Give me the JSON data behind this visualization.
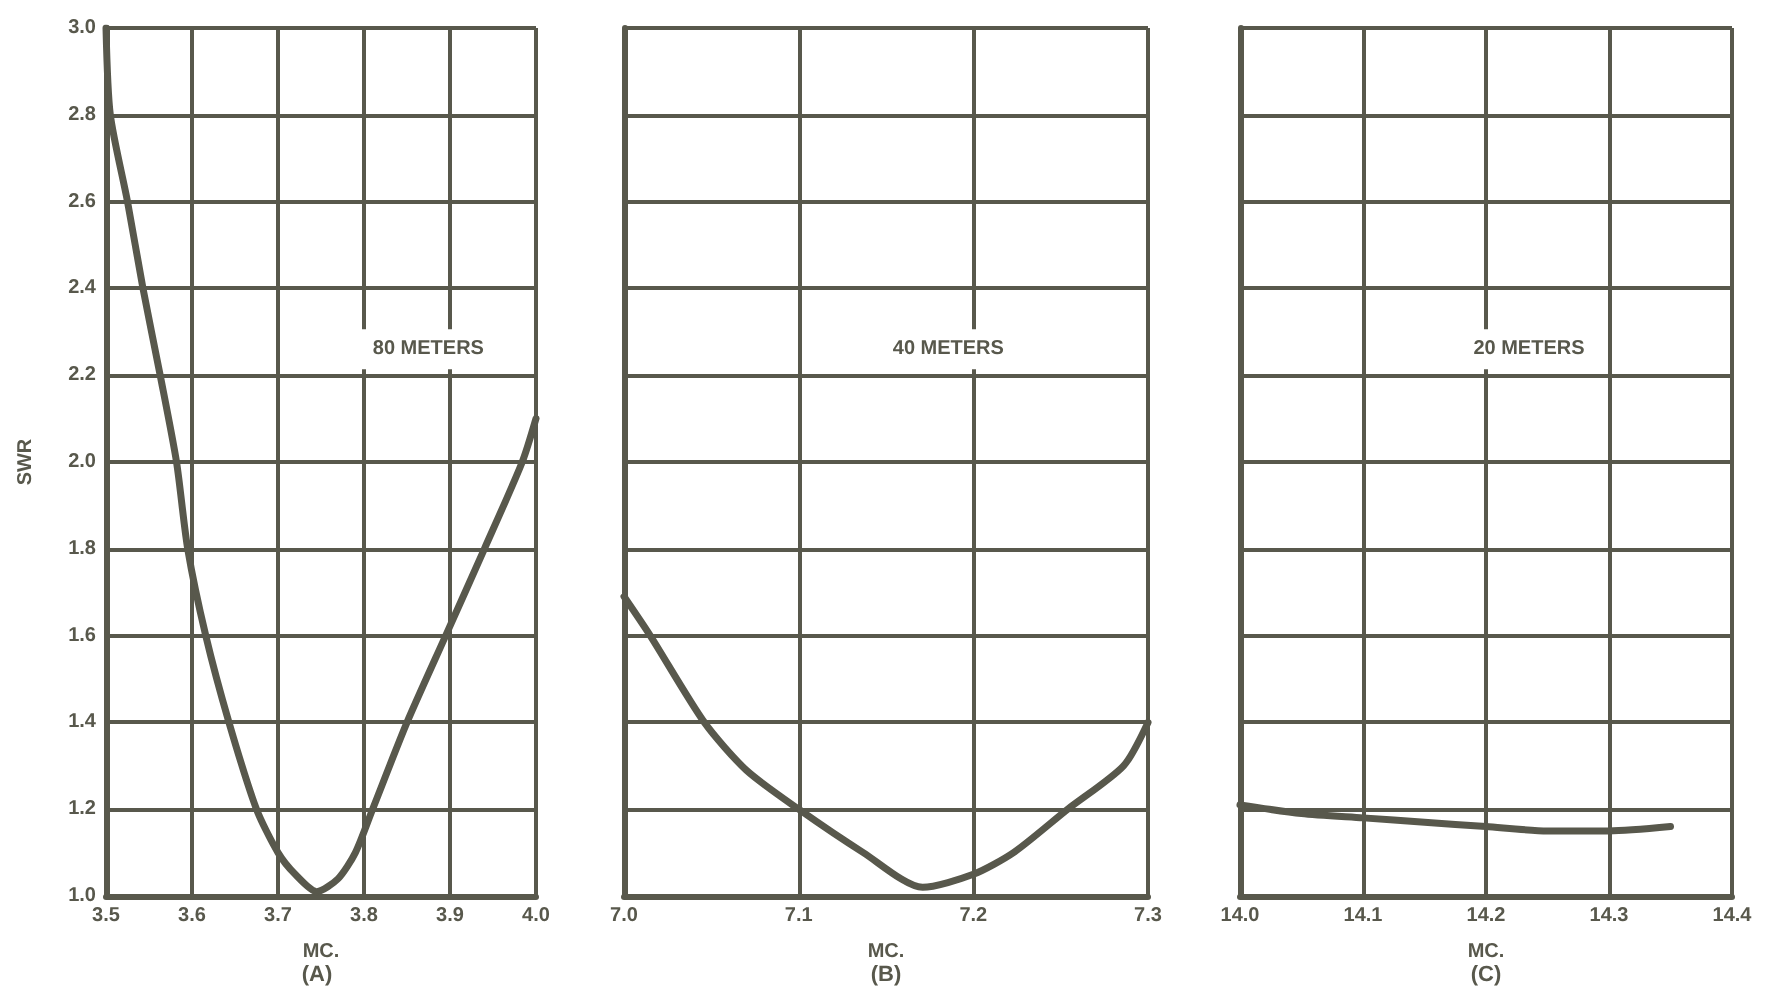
{
  "chart_data": [
    {
      "type": "line",
      "title": "(A)",
      "xlabel": "MC.",
      "ylabel": "SWR",
      "annotations": [
        "80 METERS"
      ],
      "color": "#58584c",
      "x": [
        3.5,
        3.505,
        3.525,
        3.543,
        3.563,
        3.582,
        3.595,
        3.616,
        3.643,
        3.675,
        3.7,
        3.72,
        3.745,
        3.77,
        3.79,
        3.81,
        3.85,
        3.895,
        3.94,
        3.984,
        4.0
      ],
      "values": [
        3.0,
        2.8,
        2.6,
        2.4,
        2.2,
        2.0,
        1.8,
        1.6,
        1.4,
        1.2,
        1.1,
        1.05,
        1.01,
        1.04,
        1.1,
        1.2,
        1.4,
        1.6,
        1.8,
        2.0,
        2.1
      ],
      "xlim": [
        3.5,
        4.0
      ],
      "xticks": [
        3.5,
        3.6,
        3.7,
        3.8,
        3.9,
        {
          "value": 4,
          "label": "4.0"
        }
      ],
      "ylim": [
        1.0,
        3.0
      ],
      "yticks": [
        {
          "value": 1,
          "label": "1.0"
        },
        1.2,
        1.4,
        1.6,
        1.8,
        {
          "value": 2,
          "label": "2.0"
        },
        2.2,
        2.4,
        2.6,
        2.8,
        {
          "value": 3,
          "label": "3.0"
        }
      ],
      "grid": true
    },
    {
      "type": "line",
      "title": "(B)",
      "xlabel": "MC.",
      "annotations": [
        "40 METERS"
      ],
      "color": "#58584c",
      "x": [
        7.0,
        7.015,
        7.046,
        7.07,
        7.1,
        7.137,
        7.171,
        7.2,
        7.223,
        7.254,
        7.286,
        7.3
      ],
      "values": [
        1.69,
        1.6,
        1.4,
        1.29,
        1.2,
        1.1,
        1.02,
        1.05,
        1.1,
        1.2,
        1.3,
        1.4
      ],
      "xlim": [
        7.0,
        7.3
      ],
      "xticks": [
        {
          "value": 7,
          "label": "7.0"
        },
        7.1,
        7.2,
        7.3
      ],
      "ylim": [
        1.0,
        3.0
      ],
      "yticks": [
        1,
        1.2,
        1.4,
        1.6,
        1.8,
        2,
        2.2,
        2.4,
        2.6,
        2.8,
        3
      ],
      "grid": true,
      "tick_labels": "x"
    },
    {
      "type": "line",
      "title": "(C)",
      "xlabel": "MC.",
      "annotations": [
        "20 METERS"
      ],
      "color": "#58584c",
      "x": [
        14.0,
        14.05,
        14.1,
        14.15,
        14.2,
        14.25,
        14.3,
        14.35
      ],
      "values": [
        1.21,
        1.19,
        1.18,
        1.17,
        1.16,
        1.15,
        1.15,
        1.16
      ],
      "xlim": [
        14.0,
        14.4
      ],
      "xticks": [
        {
          "value": 14,
          "label": "14.0"
        },
        14.1,
        14.2,
        14.3,
        14.4
      ],
      "ylim": [
        1.0,
        3.0
      ],
      "yticks": [
        1,
        1.2,
        1.4,
        1.6,
        1.8,
        2,
        2.2,
        2.4,
        2.6,
        2.8,
        3
      ],
      "grid": true,
      "tick_labels": "x"
    }
  ]
}
